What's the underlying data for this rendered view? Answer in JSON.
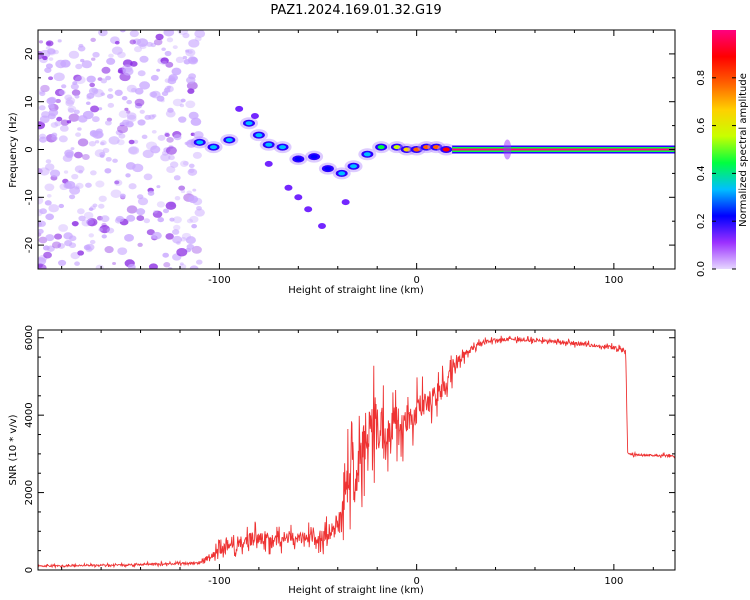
{
  "title": "PAZ1.2024.169.01.32.G19",
  "colorbar": {
    "label": "Normalized spectral amplitude",
    "ticks": [
      0.0,
      0.2,
      0.4,
      0.6,
      0.8
    ],
    "tick_labels": [
      "0.0",
      "0.2",
      "0.4",
      "0.6",
      "0.8"
    ],
    "range": [
      0,
      1
    ],
    "colormap": [
      "#e6d7ff",
      "#9b30ff",
      "#0000ff",
      "#00bfff",
      "#00ff40",
      "#c8ff00",
      "#ffd000",
      "#ff6000",
      "#ff0000",
      "#ff007f"
    ]
  },
  "chart_data": [
    {
      "type": "heatmap",
      "xlabel": "Height of straight line (km)",
      "ylabel": "Frequency (Hz)",
      "xlim": [
        -192,
        131
      ],
      "ylim": [
        -25,
        25
      ],
      "xticks": [
        -100,
        0,
        100
      ],
      "xtick_labels": [
        "-100",
        "0",
        "100"
      ],
      "yticks": [
        -20,
        -10,
        0,
        10,
        20
      ],
      "ytick_labels": [
        "-20",
        "-10",
        "0",
        "10",
        "20"
      ],
      "grid": false,
      "noise_region": {
        "x": [
          -192,
          -110
        ],
        "y": [
          -25,
          25
        ],
        "level": 0.1
      },
      "ridge": [
        {
          "x": -110,
          "y": 1.5,
          "a": 0.35
        },
        {
          "x": -103,
          "y": 0.5,
          "a": 0.35
        },
        {
          "x": -95,
          "y": 2.0,
          "a": 0.3
        },
        {
          "x": -85,
          "y": 5.5,
          "a": 0.3
        },
        {
          "x": -80,
          "y": 3.0,
          "a": 0.3
        },
        {
          "x": -75,
          "y": 1.0,
          "a": 0.3
        },
        {
          "x": -68,
          "y": 0.5,
          "a": 0.3
        },
        {
          "x": -60,
          "y": -2.0,
          "a": 0.25
        },
        {
          "x": -52,
          "y": -1.5,
          "a": 0.25
        },
        {
          "x": -45,
          "y": -4.0,
          "a": 0.25
        },
        {
          "x": -38,
          "y": -5.0,
          "a": 0.3
        },
        {
          "x": -32,
          "y": -3.5,
          "a": 0.3
        },
        {
          "x": -25,
          "y": -1.0,
          "a": 0.35
        },
        {
          "x": -18,
          "y": 0.5,
          "a": 0.4
        },
        {
          "x": -10,
          "y": 0.5,
          "a": 0.5
        },
        {
          "x": -5,
          "y": 0.0,
          "a": 0.7
        },
        {
          "x": 0,
          "y": 0.0,
          "a": 0.75
        },
        {
          "x": 5,
          "y": 0.5,
          "a": 0.75
        },
        {
          "x": 10,
          "y": 0.5,
          "a": 0.8
        },
        {
          "x": 15,
          "y": 0.0,
          "a": 0.85
        }
      ],
      "ridge_scatter": [
        {
          "x": -65,
          "y": -8.0,
          "a": 0.2
        },
        {
          "x": -60,
          "y": -10.0,
          "a": 0.2
        },
        {
          "x": -55,
          "y": -12.5,
          "a": 0.2
        },
        {
          "x": -48,
          "y": -16.0,
          "a": 0.2
        },
        {
          "x": -90,
          "y": 8.5,
          "a": 0.2
        },
        {
          "x": -82,
          "y": 7.0,
          "a": 0.25
        },
        {
          "x": -36,
          "y": -11.0,
          "a": 0.15
        },
        {
          "x": -75,
          "y": -3.0,
          "a": 0.2
        }
      ],
      "carrier_band": {
        "x": [
          18,
          131
        ],
        "y": 0,
        "a": 0.95,
        "bump_x": 46
      }
    },
    {
      "type": "line",
      "xlabel": "Height of straight line (km)",
      "ylabel": "SNR (10 * v/v)",
      "xlim": [
        -192,
        131
      ],
      "ylim": [
        0,
        6200
      ],
      "xticks": [
        -100,
        0,
        100
      ],
      "xtick_labels": [
        "-100",
        "0",
        "100"
      ],
      "yticks": [
        0,
        2000,
        4000,
        6000
      ],
      "ytick_labels": [
        "0",
        "2000",
        "4000",
        "6000"
      ],
      "grid": false,
      "color": "#ee3333",
      "series": [
        {
          "x": [
            -192,
            -150,
            -110,
            -100,
            -80,
            -60,
            -45,
            -38,
            -33,
            -30,
            -25,
            -20,
            -15,
            -10,
            -5,
            0,
            5,
            10,
            15,
            20,
            25,
            30,
            35,
            40,
            50,
            60,
            70,
            80,
            90,
            100,
            106,
            107,
            110,
            120,
            131
          ],
          "values": [
            100,
            130,
            180,
            550,
            850,
            800,
            900,
            1300,
            3100,
            2500,
            3500,
            3700,
            3600,
            3800,
            3900,
            4100,
            4300,
            4500,
            4800,
            5300,
            5600,
            5800,
            5900,
            5950,
            5950,
            5930,
            5900,
            5850,
            5800,
            5740,
            5650,
            3000,
            2980,
            2960,
            2940
          ],
          "noise": [
            40,
            50,
            70,
            350,
            450,
            400,
            500,
            800,
            2000,
            1700,
            1800,
            1600,
            1400,
            1200,
            1000,
            900,
            800,
            700,
            600,
            400,
            250,
            150,
            120,
            100,
            100,
            100,
            100,
            110,
            110,
            120,
            120,
            60,
            60,
            60,
            60
          ]
        }
      ]
    }
  ]
}
